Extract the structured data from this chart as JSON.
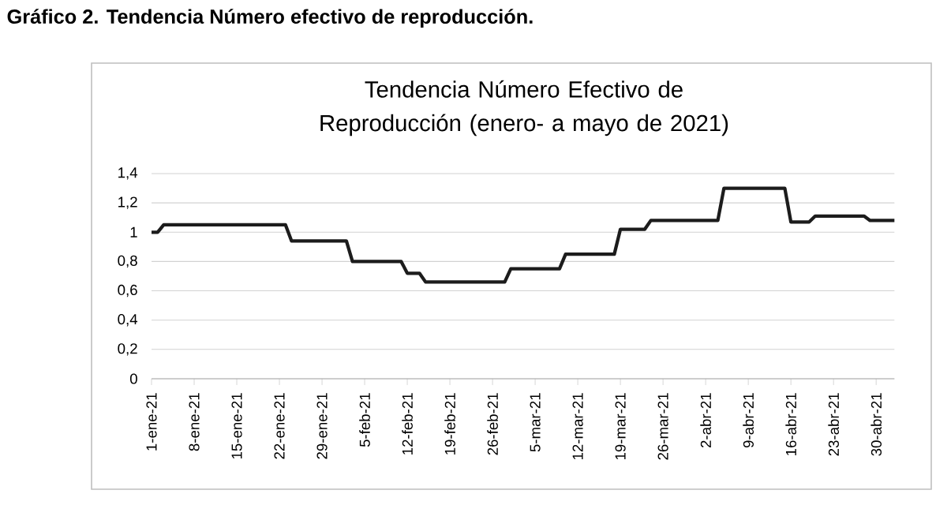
{
  "chart_data": {
    "type": "line",
    "title": "Gráfico 2. Tendencia Número efectivo de reproducción.",
    "subtitle": "Tendencia Número Efectivo de Reproducción (enero- a mayo de 2021)",
    "x": [
      "2021-01-01",
      "2021-01-02",
      "2021-01-03",
      "2021-01-23",
      "2021-01-24",
      "2021-02-02",
      "2021-02-03",
      "2021-02-11",
      "2021-02-12",
      "2021-02-14",
      "2021-02-15",
      "2021-02-28",
      "2021-03-01",
      "2021-03-09",
      "2021-03-10",
      "2021-03-18",
      "2021-03-19",
      "2021-03-23",
      "2021-03-24",
      "2021-04-04",
      "2021-04-05",
      "2021-04-15",
      "2021-04-16",
      "2021-04-19",
      "2021-04-20",
      "2021-04-28",
      "2021-04-29",
      "2021-05-03"
    ],
    "values": [
      1.0,
      1.0,
      1.05,
      1.05,
      0.94,
      0.94,
      0.8,
      0.8,
      0.72,
      0.72,
      0.66,
      0.66,
      0.75,
      0.75,
      0.85,
      0.85,
      1.02,
      1.02,
      1.08,
      1.08,
      1.3,
      1.3,
      1.07,
      1.07,
      1.11,
      1.11,
      1.08,
      1.08
    ],
    "color": "#1c1c1c",
    "xlim": [
      "2021-01-01",
      "2021-05-03"
    ],
    "xticks": [
      {
        "value": "2021-01-01",
        "label": "1-ene-21"
      },
      {
        "value": "2021-01-08",
        "label": "8-ene-21"
      },
      {
        "value": "2021-01-15",
        "label": "15-ene-21"
      },
      {
        "value": "2021-01-22",
        "label": "22-ene-21"
      },
      {
        "value": "2021-01-29",
        "label": "29-ene-21"
      },
      {
        "value": "2021-02-05",
        "label": "5-feb-21"
      },
      {
        "value": "2021-02-12",
        "label": "12-feb-21"
      },
      {
        "value": "2021-02-19",
        "label": "19-feb-21"
      },
      {
        "value": "2021-02-26",
        "label": "26-feb-21"
      },
      {
        "value": "2021-03-05",
        "label": "5-mar-21"
      },
      {
        "value": "2021-03-12",
        "label": "12-mar-21"
      },
      {
        "value": "2021-03-19",
        "label": "19-mar-21"
      },
      {
        "value": "2021-03-26",
        "label": "26-mar-21"
      },
      {
        "value": "2021-04-02",
        "label": "2-abr-21"
      },
      {
        "value": "2021-04-09",
        "label": "9-abr-21"
      },
      {
        "value": "2021-04-16",
        "label": "16-abr-21"
      },
      {
        "value": "2021-04-23",
        "label": "23-abr-21"
      },
      {
        "value": "2021-04-30",
        "label": "30-abr-21"
      }
    ],
    "ylim": [
      0,
      1.4
    ],
    "yticks": [
      0,
      {
        "value": 0.2,
        "label": "0,2"
      },
      {
        "value": 0.4,
        "label": "0,4"
      },
      {
        "value": 0.6,
        "label": "0,6"
      },
      {
        "value": 0.8,
        "label": "0,8"
      },
      1,
      {
        "value": 1.2,
        "label": "1,2"
      },
      {
        "value": 1.4,
        "label": "1,4"
      }
    ],
    "grid": "y"
  }
}
